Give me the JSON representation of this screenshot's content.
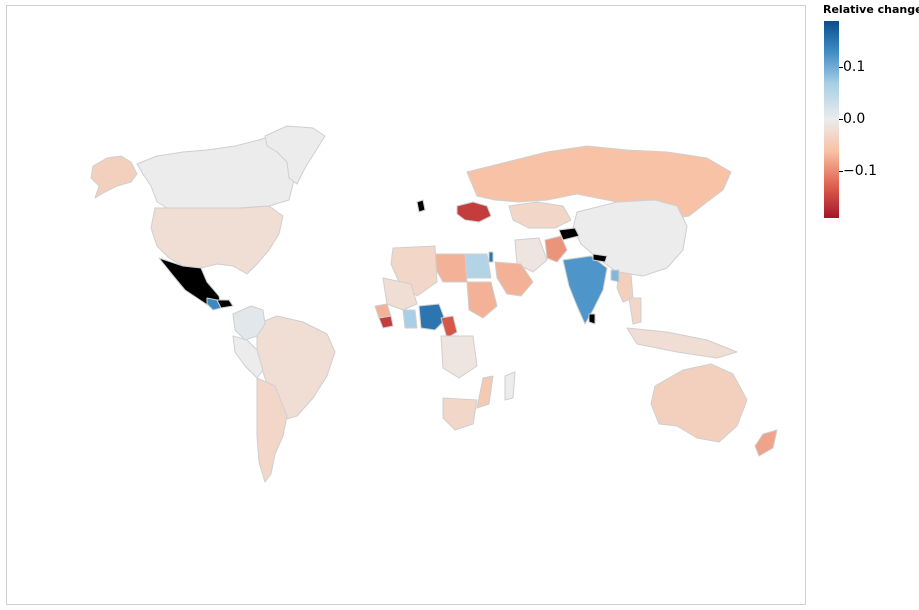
{
  "legend": {
    "title": "Relative change",
    "ticks": [
      {
        "label": "0.1",
        "value": 0.1
      },
      {
        "label": "0.0",
        "value": 0.0
      },
      {
        "label": "−0.1",
        "value": -0.1
      }
    ],
    "range": [
      -0.18,
      0.18
    ],
    "colors": {
      "high": "#0b4d8c",
      "mid": "#ececec",
      "low": "#a5152a",
      "no_data": "#000000"
    }
  },
  "chart_data": {
    "type": "choropleth",
    "measure": "Relative change",
    "regions": [
      {
        "name": "Canada",
        "value": 0.0
      },
      {
        "name": "Greenland",
        "value": 0.0
      },
      {
        "name": "Alaska",
        "value": -0.04
      },
      {
        "name": "United States",
        "value": -0.02
      },
      {
        "name": "Mexico",
        "value": null
      },
      {
        "name": "Guatemala",
        "value": 0.12
      },
      {
        "name": "Honduras",
        "value": null
      },
      {
        "name": "Brazil",
        "value": -0.02
      },
      {
        "name": "Argentina",
        "value": -0.03
      },
      {
        "name": "Peru",
        "value": 0.0
      },
      {
        "name": "Colombia",
        "value": 0.01
      },
      {
        "name": "Russia",
        "value": -0.06
      },
      {
        "name": "China",
        "value": 0.0
      },
      {
        "name": "India",
        "value": 0.11
      },
      {
        "name": "Sri Lanka",
        "value": null
      },
      {
        "name": "Nepal",
        "value": null
      },
      {
        "name": "Afghanistan",
        "value": -0.09
      },
      {
        "name": "Kazakhstan",
        "value": -0.03
      },
      {
        "name": "Kyrgyzstan",
        "value": null
      },
      {
        "name": "Iran",
        "value": -0.01
      },
      {
        "name": "Saudi Arabia",
        "value": -0.07
      },
      {
        "name": "Egypt",
        "value": 0.05
      },
      {
        "name": "Libya",
        "value": -0.07
      },
      {
        "name": "Algeria",
        "value": -0.03
      },
      {
        "name": "Mali",
        "value": -0.02
      },
      {
        "name": "Sudan",
        "value": -0.07
      },
      {
        "name": "Nigeria",
        "value": 0.14
      },
      {
        "name": "Cameroon",
        "value": -0.13
      },
      {
        "name": "Ghana",
        "value": 0.06
      },
      {
        "name": "Sierra Leone",
        "value": -0.15
      },
      {
        "name": "Guinea",
        "value": -0.07
      },
      {
        "name": "Ukraine",
        "value": -0.15
      },
      {
        "name": "Israel",
        "value": 0.14
      },
      {
        "name": "Ireland",
        "value": null
      },
      {
        "name": "Australia",
        "value": -0.04
      },
      {
        "name": "New Zealand",
        "value": -0.08
      },
      {
        "name": "Madagascar",
        "value": 0.0
      },
      {
        "name": "South Africa",
        "value": -0.03
      },
      {
        "name": "Mozambique",
        "value": -0.05
      },
      {
        "name": "DR Congo",
        "value": -0.01
      },
      {
        "name": "Myanmar",
        "value": -0.04
      },
      {
        "name": "Thailand",
        "value": -0.03
      },
      {
        "name": "Indonesia",
        "value": -0.02
      },
      {
        "name": "Bangladesh",
        "value": 0.08
      }
    ]
  }
}
